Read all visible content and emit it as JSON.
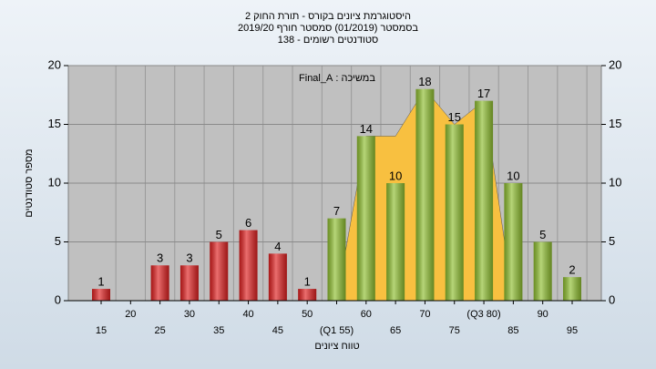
{
  "chart_data": {
    "type": "bar",
    "title": "היסטוגרמת ציונים בקורס - תורת החוק 2",
    "subtitle": [
      "בסמסטר (01/2019) סמסטר חורף 2019/20",
      "סטודנטים רשומים - 138"
    ],
    "annotation": "במשיכה : Final_A",
    "x_label": "טווח ציונים",
    "y_label": "מספר סטודנטים",
    "categories": [
      "15",
      "20",
      "25",
      "30",
      "35",
      "40",
      "45",
      "50",
      "(Q1 55)",
      "60",
      "65",
      "70",
      "75",
      "(Q3 80)",
      "85",
      "90",
      "95"
    ],
    "values": [
      1,
      null,
      3,
      3,
      5,
      6,
      4,
      1,
      7,
      14,
      10,
      18,
      15,
      17,
      10,
      5,
      2
    ],
    "colors": [
      "#e02020",
      "#e02020",
      "#e02020",
      "#e02020",
      "#e02020",
      "#e02020",
      "#e02020",
      "#e02020",
      "#8fbf30",
      "#8fbf30",
      "#8fbf30",
      "#8fbf30",
      "#8fbf30",
      "#8fbf30",
      "#8fbf30",
      "#8fbf30",
      "#8fbf30"
    ],
    "area_values": [
      null,
      null,
      null,
      null,
      null,
      null,
      null,
      null,
      0,
      14,
      14,
      18,
      15,
      17,
      0,
      null,
      null
    ],
    "area_color": "#f8c040",
    "ylim": [
      0,
      20
    ],
    "yticks": [
      0,
      5,
      10,
      15,
      20
    ],
    "y2lim": [
      0,
      20
    ],
    "y2ticks": [
      0,
      5,
      10,
      15,
      20
    ],
    "grid": true
  }
}
